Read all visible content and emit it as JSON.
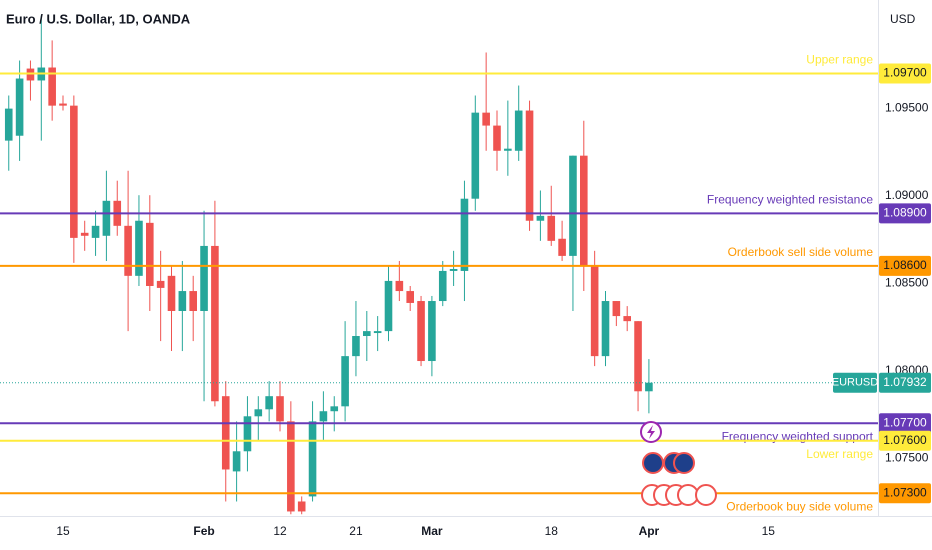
{
  "chart_data": {
    "type": "candlestick",
    "title": "Euro / U.S. Dollar, 1D, OANDA",
    "currency": "USD",
    "up_color": "#26a69a",
    "down_color": "#ef5350",
    "grid": false,
    "categories": [
      null,
      null,
      null,
      null,
      null,
      "15",
      null,
      null,
      null,
      null,
      null,
      null,
      null,
      null,
      null,
      null,
      null,
      null,
      "Feb",
      null,
      null,
      null,
      null,
      null,
      null,
      "12",
      null,
      null,
      null,
      null,
      null,
      null,
      "21",
      null,
      null,
      null,
      null,
      null,
      null,
      "Mar",
      null,
      null,
      null,
      null,
      null,
      null,
      null,
      null,
      null,
      null,
      "18",
      null,
      null,
      null,
      null,
      null,
      null,
      null,
      null,
      "Apr",
      null,
      null,
      null,
      null,
      null,
      null,
      null,
      null,
      null,
      null,
      "15",
      null,
      null,
      null,
      null,
      null,
      null,
      null,
      null,
      null
    ],
    "open": [
      1.09316,
      1.09344,
      1.09728,
      1.0966,
      1.09734,
      1.09528,
      1.09516,
      1.08789,
      1.0876,
      1.08772,
      1.08972,
      1.08829,
      1.08543,
      1.08846,
      1.08514,
      1.08543,
      1.08342,
      1.08456,
      1.08342,
      1.08714,
      1.07855,
      1.07425,
      1.0754,
      1.0774,
      1.0778,
      1.07855,
      1.07711,
      1.07253,
      1.07282,
      1.07711,
      1.07769,
      1.07797,
      1.08084,
      1.08199,
      1.08216,
      1.08227,
      1.08514,
      1.08456,
      1.08399,
      1.08056,
      1.08399,
      1.08571,
      1.08571,
      1.08984,
      1.09476,
      1.09402,
      1.09258,
      1.09258,
      1.09488,
      1.08858,
      1.08886,
      1.08755,
      1.08657,
      1.0923,
      1.086,
      1.08084,
      1.08399,
      1.08313,
      1.08284,
      1.07883,
      null,
      null,
      null,
      null,
      null,
      null,
      null,
      null,
      null,
      null,
      null,
      null,
      null,
      null,
      null,
      null,
      null,
      null,
      null,
      null
    ],
    "high": [
      1.09574,
      1.09774,
      1.09774,
      1.10032,
      1.09889,
      1.09574,
      1.09574,
      1.08858,
      1.08915,
      1.09144,
      1.09087,
      1.09144,
      1.09004,
      1.09004,
      1.08686,
      1.086,
      1.08628,
      1.08543,
      1.08915,
      1.08972,
      1.07941,
      1.07711,
      1.07855,
      1.07855,
      1.07941,
      1.07941,
      1.07826,
      1.07282,
      1.07826,
      1.07883,
      1.07855,
      1.08284,
      1.08399,
      1.08342,
      1.08313,
      1.086,
      1.08628,
      1.08485,
      1.08428,
      1.08428,
      1.08628,
      1.08686,
      1.09087,
      1.09574,
      1.0982,
      1.09488,
      1.09545,
      1.09631,
      1.09545,
      1.09031,
      1.09058,
      1.08858,
      1.0923,
      1.0943,
      1.08686,
      1.08456,
      1.08399,
      1.0837,
      1.08284,
      1.08067,
      null,
      null,
      null,
      null,
      null,
      null,
      null,
      null,
      null,
      null,
      null,
      null,
      null,
      null,
      null,
      null,
      null,
      null,
      null,
      null
    ],
    "low": [
      1.09144,
      1.092,
      1.09545,
      1.09316,
      1.0943,
      1.09488,
      1.08617,
      1.08686,
      1.08657,
      1.08628,
      1.08772,
      1.08227,
      1.08485,
      1.08342,
      1.0817,
      1.08113,
      1.08113,
      1.0817,
      1.07826,
      1.07797,
      1.07253,
      1.07253,
      1.07425,
      1.07597,
      1.07711,
      1.07654,
      1.0718,
      1.0718,
      1.07253,
      1.07597,
      1.07654,
      1.07711,
      1.07969,
      1.08056,
      1.08113,
      1.0817,
      1.08399,
      1.08342,
      1.08027,
      1.07969,
      1.0837,
      1.08485,
      1.08399,
      1.08915,
      1.09258,
      1.09144,
      1.09115,
      1.092,
      1.088,
      1.08743,
      1.08714,
      1.08628,
      1.08342,
      1.08456,
      1.08027,
      1.08027,
      1.08256,
      1.08227,
      1.07769,
      1.07757,
      null,
      null,
      null,
      null,
      null,
      null,
      null,
      null,
      null,
      null,
      null,
      null,
      null,
      null,
      null,
      null,
      null,
      null,
      null,
      null
    ],
    "close": [
      1.09499,
      1.09671,
      1.0966,
      1.09734,
      1.09516,
      1.09516,
      1.0876,
      1.08772,
      1.08829,
      1.08972,
      1.08829,
      1.08543,
      1.08858,
      1.08485,
      1.08474,
      1.08342,
      1.08456,
      1.08342,
      1.08714,
      1.07826,
      1.07436,
      1.0754,
      1.0774,
      1.0778,
      1.07855,
      1.07711,
      1.07196,
      1.07196,
      1.07711,
      1.07769,
      1.07797,
      1.08084,
      1.08199,
      1.08227,
      1.08227,
      1.08514,
      1.08456,
      1.08388,
      1.08056,
      1.08399,
      1.08571,
      1.08582,
      1.08984,
      1.09476,
      1.09402,
      1.09258,
      1.0927,
      1.09488,
      1.08858,
      1.08886,
      1.08743,
      1.08657,
      1.0923,
      1.086,
      1.08084,
      1.08399,
      1.08313,
      1.08284,
      1.07883,
      1.07932,
      null,
      null,
      null,
      null,
      null,
      null,
      null,
      null,
      null,
      null,
      null,
      null,
      null,
      null,
      null,
      null,
      null,
      null,
      null,
      null
    ],
    "ylim": [
      1.0717,
      1.1012
    ],
    "yticks": [
      {
        "value": 1.095,
        "label": "1.09500"
      },
      {
        "value": 1.09,
        "label": "1.09000"
      },
      {
        "value": 1.085,
        "label": "1.08500"
      },
      {
        "value": 1.08,
        "label": "1.08000"
      },
      {
        "value": 1.075,
        "label": "1.07500"
      }
    ],
    "levels": [
      {
        "name": "Upper range",
        "value": 1.097,
        "label": "1.09700",
        "color": "#ffeb3b"
      },
      {
        "name": "Frequency weighted resistance",
        "value": 1.089,
        "label": "1.08900",
        "color": "#673ab7"
      },
      {
        "name": "Orderbook sell side volume",
        "value": 1.086,
        "label": "1.08600",
        "color": "#ff9800"
      },
      {
        "name": "Frequency weighted support",
        "value": 1.077,
        "label": "1.07700",
        "color": "#673ab7"
      },
      {
        "name": "Lower range",
        "value": 1.076,
        "label": "1.07600",
        "color": "#ffeb3b"
      },
      {
        "name": "Orderbook buy side volume",
        "value": 1.073,
        "label": "1.07300",
        "color": "#ff9800"
      }
    ],
    "last_price": {
      "name": "EURUSD",
      "value": 1.07932,
      "label": "1.07932",
      "color": "#26a69a"
    }
  }
}
